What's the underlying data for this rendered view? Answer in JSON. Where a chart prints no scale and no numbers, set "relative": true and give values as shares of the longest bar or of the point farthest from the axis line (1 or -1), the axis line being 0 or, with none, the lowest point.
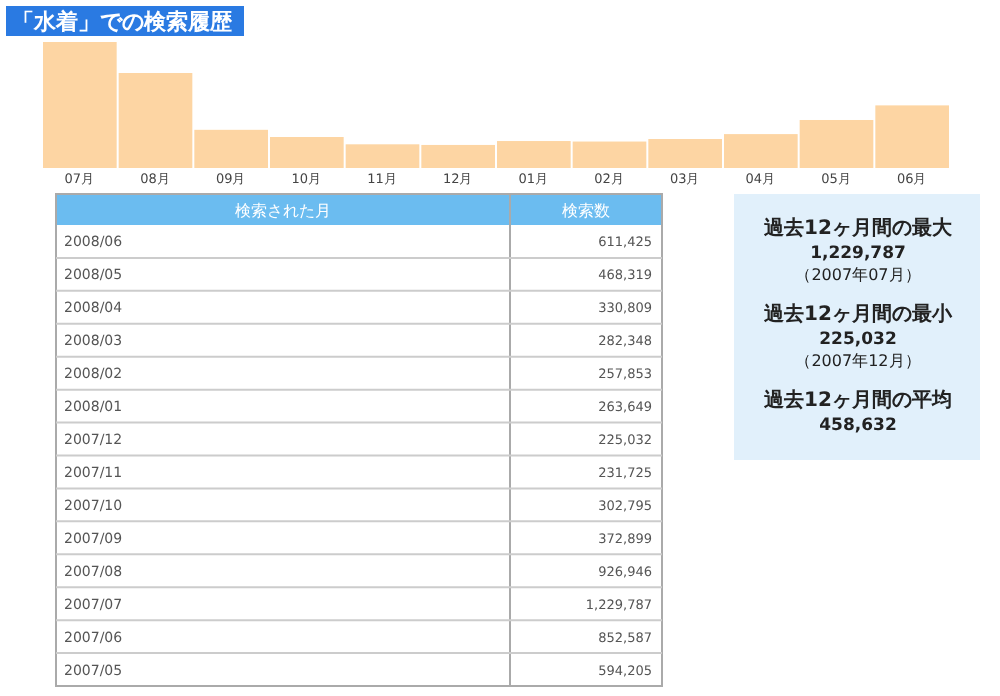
{
  "chart_data": [
    {
      "type": "bar",
      "title": "「水着」での検索履歴",
      "categories": [
        "07月",
        "08月",
        "09月",
        "10月",
        "11月",
        "12月",
        "01月",
        "02月",
        "03月",
        "04月",
        "05月",
        "06月"
      ],
      "values": [
        1,
        0.754,
        0.303,
        0.246,
        0.188,
        0.183,
        0.214,
        0.21,
        0.23,
        0.269,
        0.381,
        0.497
      ],
      "relative": true,
      "color": "#fdd5a3"
    },
    {
      "type": "other",
      "xlabel": "検索された月",
      "ylabel": "検索数",
      "categories": [
        "2008/06",
        "2008/05",
        "2008/04",
        "2008/03",
        "2008/02",
        "2008/01",
        "2007/12",
        "2007/11",
        "2007/10",
        "2007/09",
        "2007/08",
        "2007/07",
        "2007/06",
        "2007/05"
      ],
      "values": [
        611425,
        468319,
        330809,
        282348,
        257853,
        263649,
        225032,
        231725,
        302795,
        372899,
        926946,
        1229787,
        852587,
        594205
      ],
      "value_labels": [
        "611,425",
        "468,319",
        "330,809",
        "282,348",
        "257,853",
        "263,649",
        "225,032",
        "231,725",
        "302,795",
        "372,899",
        "926,946",
        "1,229,787",
        "852,587",
        "594,205"
      ],
      "color": "#6bbcf0"
    },
    {
      "type": "other",
      "color": "#e1f0fb",
      "annotations": [
        "過去12ヶ月間の最大",
        "1,229,787",
        "（2007年07月）",
        "過去12ヶ月間の最小",
        "225,032",
        "（2007年12月）",
        "過去12ヶ月間の平均",
        "458,632"
      ]
    }
  ]
}
